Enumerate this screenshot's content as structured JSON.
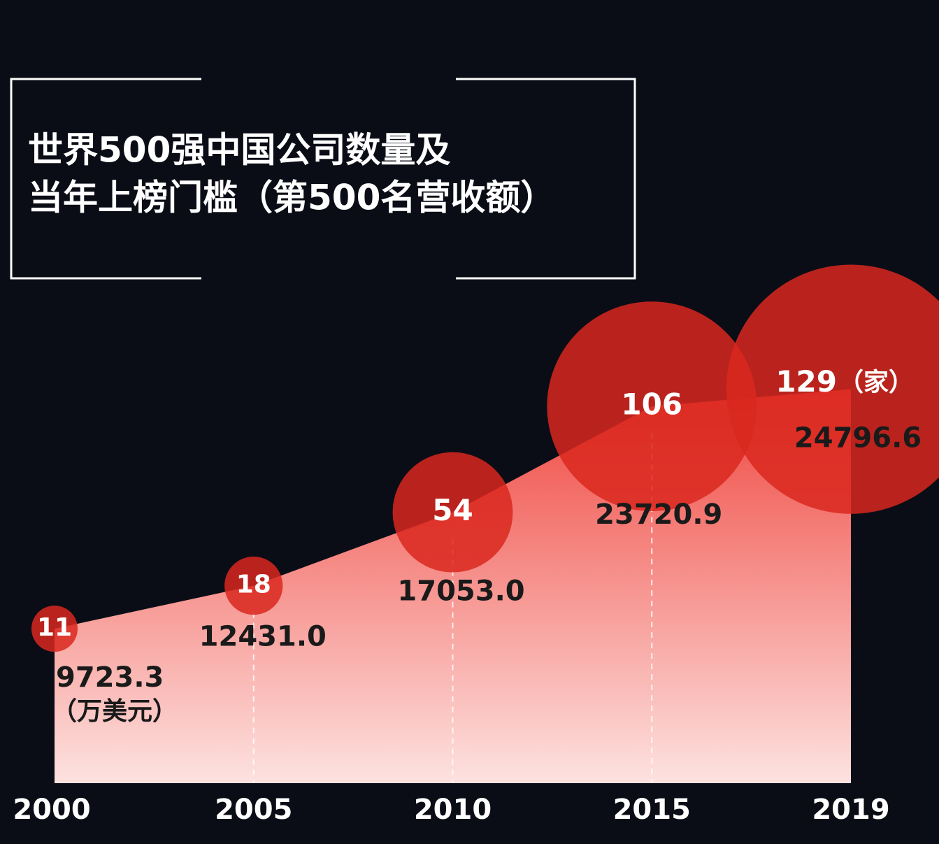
{
  "chart_data": {
    "type": "area-bubble",
    "title": [
      "世界500强中国公司数量及",
      "当年上榜门槛（第500名营收额）"
    ],
    "categories": [
      "2000",
      "2005",
      "2010",
      "2015",
      "2019"
    ],
    "values": [
      9723.3,
      12431.0,
      17053.0,
      23720.9,
      24796.6
    ],
    "value_labels": [
      "9723.3",
      "12431.0",
      "17053.0",
      "23720.9",
      "24796.6"
    ],
    "value_unit": "（万美元）",
    "counts": [
      11,
      18,
      54,
      106,
      129
    ],
    "count_unit": "（家）",
    "ylim": [
      0,
      49300
    ],
    "color": "#d9281f",
    "area_color": "#f0463f",
    "background": "#0b0d16"
  }
}
